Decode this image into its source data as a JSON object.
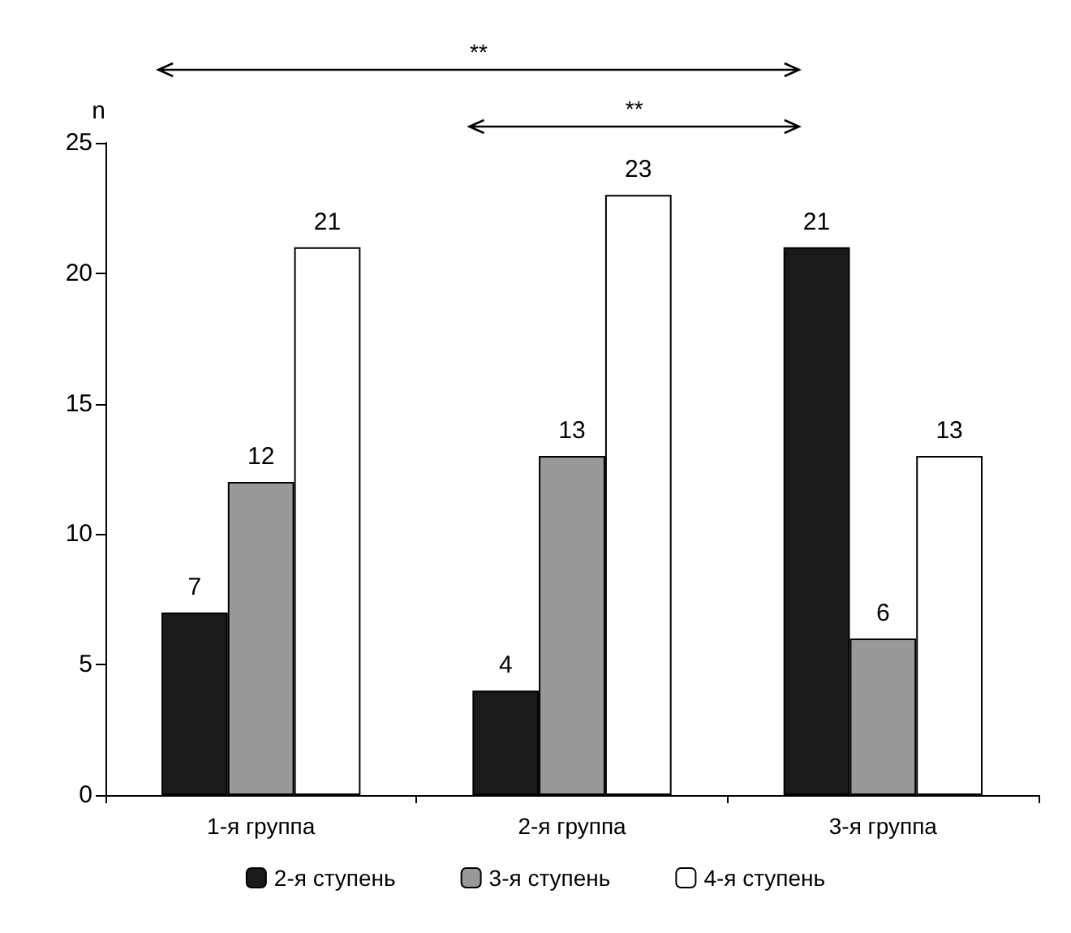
{
  "chart_data": {
    "type": "bar",
    "ylabel": "n",
    "categories": [
      "1-я группа",
      "2-я группа",
      "3-я группа"
    ],
    "series": [
      {
        "name": "2-я ступень",
        "color": "#1a1a1a",
        "values": [
          7,
          4,
          21
        ]
      },
      {
        "name": "3-я ступень",
        "color": "#999999",
        "values": [
          12,
          13,
          6
        ]
      },
      {
        "name": "4-я ступень",
        "color": "#ffffff",
        "values": [
          21,
          23,
          13
        ]
      }
    ],
    "ylim": [
      0,
      25
    ],
    "yticks": [
      0,
      5,
      10,
      15,
      20,
      25
    ],
    "grid": false,
    "legend": "bottom",
    "data_labels": true,
    "annotations": [
      {
        "text": "**"
      },
      {
        "text": "**"
      }
    ]
  }
}
